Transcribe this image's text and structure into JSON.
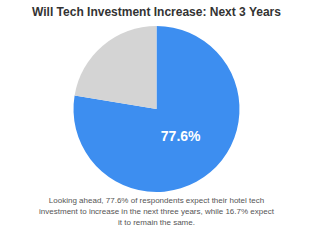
{
  "chart_data": {
    "type": "pie",
    "title": "Will Tech Investment Increase: Next 3 Years",
    "values": [
      77.6,
      22.4
    ],
    "colors": [
      "#3d8ef0",
      "#d4d4d4"
    ],
    "data_labels": true,
    "value_labels": [
      "77.6%",
      null
    ],
    "annotations": [
      "Looking ahead, 77.6% of respondents expect their hotel tech",
      "investment to increase in the next three years, while 16.7% expect",
      "it to remain the same."
    ]
  }
}
